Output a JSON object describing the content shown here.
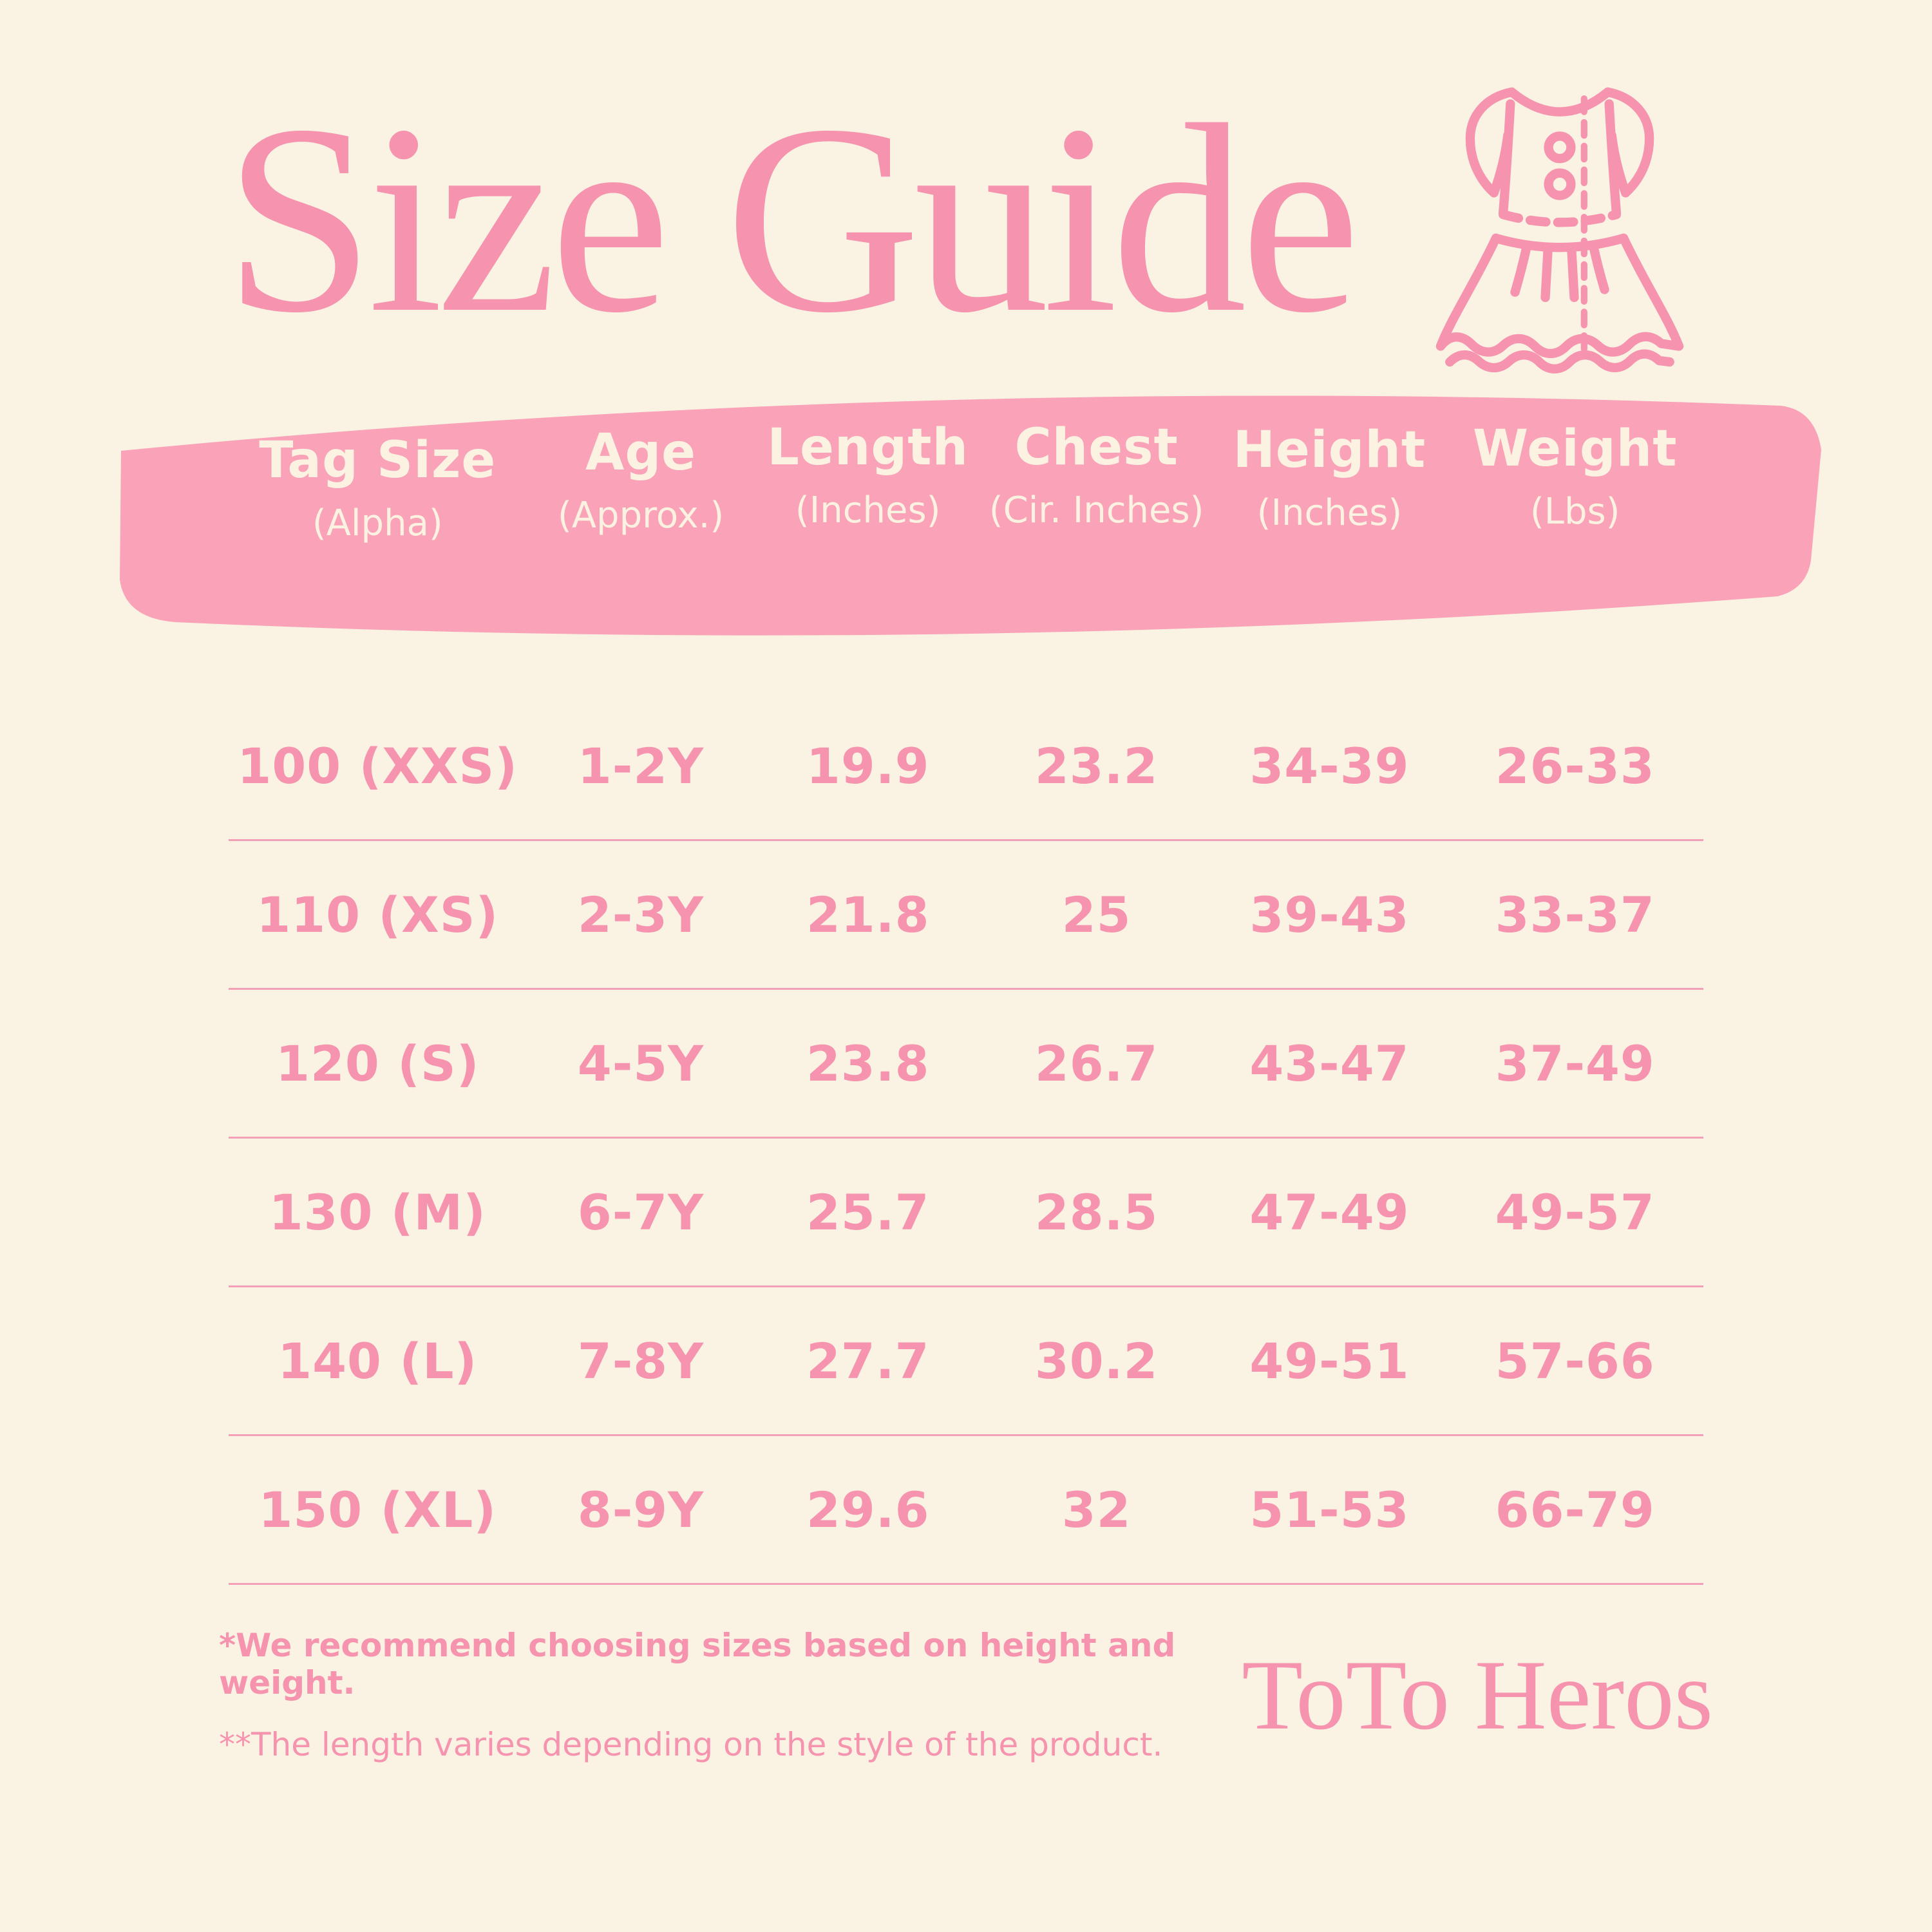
{
  "header": {
    "title": "Size Guide",
    "icon": "dress-icon"
  },
  "table": {
    "columns": [
      {
        "label": "Tag Size",
        "sub": "(Alpha)"
      },
      {
        "label": "Age",
        "sub": "(Approx.)"
      },
      {
        "label": "Length",
        "sub": "(Inches)"
      },
      {
        "label": "Chest",
        "sub": "(Cir. Inches)"
      },
      {
        "label": "Height",
        "sub": "(Inches)"
      },
      {
        "label": "Weight",
        "sub": "(Lbs)"
      }
    ],
    "rows": [
      [
        "100 (XXS)",
        "1-2Y",
        "19.9",
        "23.2",
        "34-39",
        "26-33"
      ],
      [
        "110 (XS)",
        "2-3Y",
        "21.8",
        "25",
        "39-43",
        "33-37"
      ],
      [
        "120 (S)",
        "4-5Y",
        "23.8",
        "26.7",
        "43-47",
        "37-49"
      ],
      [
        "130 (M)",
        "6-7Y",
        "25.7",
        "28.5",
        "47-49",
        "49-57"
      ],
      [
        "140 (L)",
        "7-8Y",
        "27.7",
        "30.2",
        "49-51",
        "57-66"
      ],
      [
        "150 (XL)",
        "8-9Y",
        "29.6",
        "32",
        "51-53",
        "66-79"
      ]
    ]
  },
  "notes": {
    "line1": "*We recommend choosing sizes based on height and weight.",
    "line2": "**The length varies depending on the style of the product."
  },
  "brand": "ToTo Heros",
  "colors": {
    "background": "#FAF2E3",
    "banner": "#F9A2B8",
    "banner_text": "#FBF2E1",
    "accent_pink": "#F693AF",
    "divider": "#F2A0B7"
  }
}
